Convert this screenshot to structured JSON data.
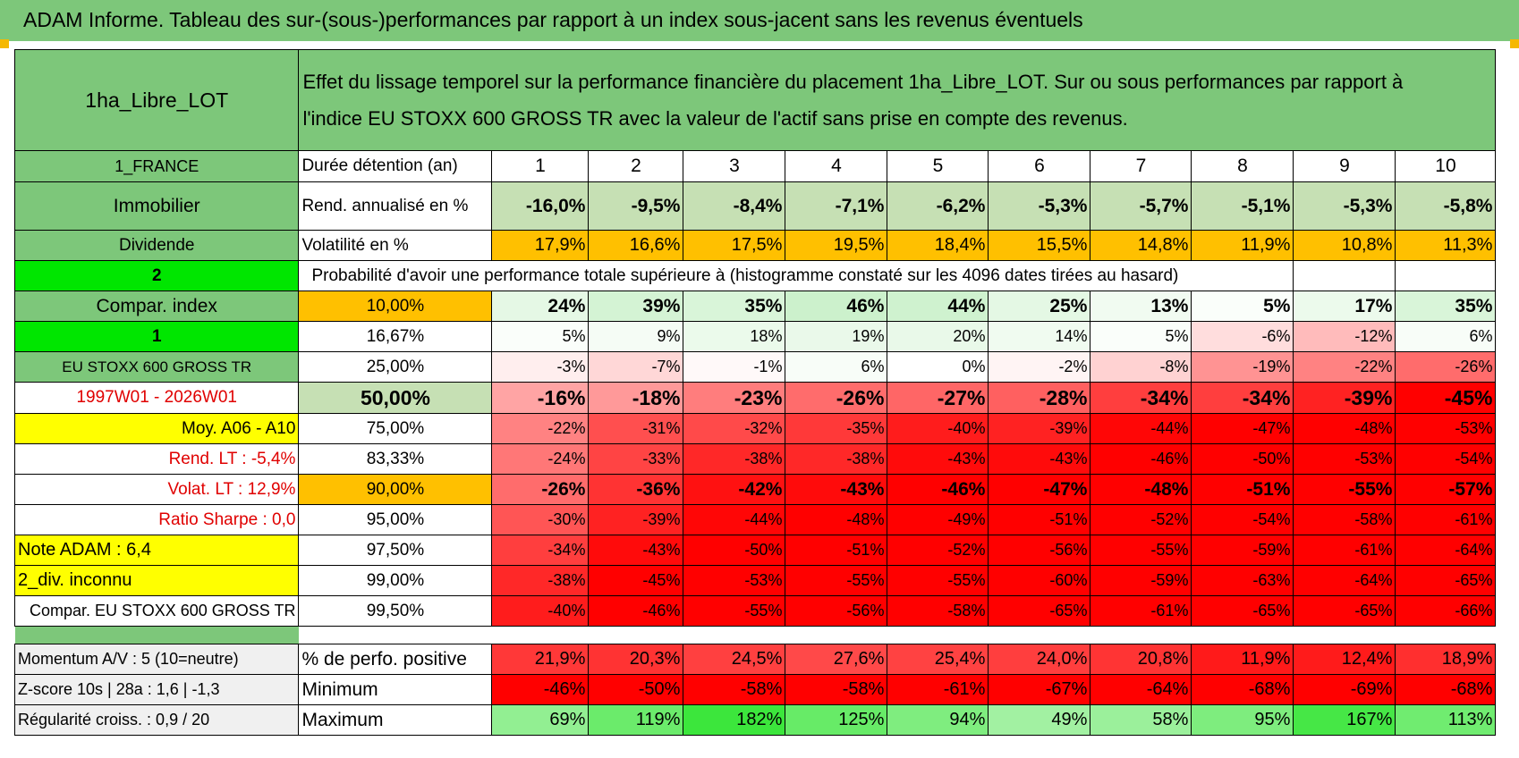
{
  "title": "ADAM Informe. Tableau des sur-(sous-)performances par rapport à un index sous-jacent sans les revenus éventuels",
  "fund_name": "1ha_Libre_LOT",
  "description": "Effet du lissage temporel sur la performance financière du placement 1ha_Libre_LOT. Sur ou sous performances par rapport à l'indice EU STOXX 600 GROSS TR avec la valeur de l'actif sans prise en compte des revenus.",
  "description_line1": "Effet du lissage temporel sur la performance financière du placement 1ha_Libre_LOT. Sur ou sous performances par rapport à",
  "description_line2": "l'indice EU STOXX 600 GROSS TR avec la valeur de l'actif sans prise en compte des revenus.",
  "left_labels": {
    "country": "1_FRANCE",
    "category": "Immobilier",
    "distribution": "Dividende",
    "value_2": "2",
    "compar_index": "Compar. index",
    "value_1": "1",
    "index_name": "EU STOXX 600 GROSS TR",
    "period": "1997W01 - 2026W01",
    "moy": "Moy. A06 - A10",
    "rend_lt": "Rend. LT :    -5,4%",
    "volat_lt": "Volat. LT :    12,9%",
    "sharpe": "Ratio Sharpe :     0,0",
    "note_adam": "Note ADAM : 6,4",
    "div_inconnu": "2_div. inconnu",
    "compar_full": "Compar. EU STOXX 600 GROSS TR"
  },
  "header": {
    "duree_label": "Durée détention (an)",
    "years": [
      "1",
      "2",
      "3",
      "4",
      "5",
      "6",
      "7",
      "8",
      "9",
      "10"
    ]
  },
  "rend": {
    "label": "Rend. annualisé en %",
    "values": [
      "-16,0%",
      "-9,5%",
      "-8,4%",
      "-7,1%",
      "-6,2%",
      "-5,3%",
      "-5,7%",
      "-5,1%",
      "-5,3%",
      "-5,8%"
    ]
  },
  "volat": {
    "label": "Volatilité en %",
    "values": [
      "17,9%",
      "16,6%",
      "17,5%",
      "19,5%",
      "18,4%",
      "15,5%",
      "14,8%",
      "11,9%",
      "10,8%",
      "11,3%"
    ]
  },
  "prob_title": "Probabilité d'avoir une performance totale supérieure à (histogramme constaté sur les 4096 dates tirées au hasard)",
  "quantiles": [
    {
      "pct": "10,00%",
      "values": [
        "24%",
        "39%",
        "35%",
        "46%",
        "44%",
        "25%",
        "13%",
        "5%",
        "17%",
        "35%"
      ]
    },
    {
      "pct": "16,67%",
      "values": [
        "5%",
        "9%",
        "18%",
        "19%",
        "20%",
        "14%",
        "5%",
        "-6%",
        "-12%",
        "6%"
      ]
    },
    {
      "pct": "25,00%",
      "values": [
        "-3%",
        "-7%",
        "-1%",
        "6%",
        "0%",
        "-2%",
        "-8%",
        "-19%",
        "-22%",
        "-26%"
      ]
    },
    {
      "pct": "50,00%",
      "values": [
        "-16%",
        "-18%",
        "-23%",
        "-26%",
        "-27%",
        "-28%",
        "-34%",
        "-34%",
        "-39%",
        "-45%"
      ]
    },
    {
      "pct": "75,00%",
      "values": [
        "-22%",
        "-31%",
        "-32%",
        "-35%",
        "-40%",
        "-39%",
        "-44%",
        "-47%",
        "-48%",
        "-53%"
      ]
    },
    {
      "pct": "83,33%",
      "values": [
        "-24%",
        "-33%",
        "-38%",
        "-38%",
        "-43%",
        "-43%",
        "-46%",
        "-50%",
        "-53%",
        "-54%"
      ]
    },
    {
      "pct": "90,00%",
      "values": [
        "-26%",
        "-36%",
        "-42%",
        "-43%",
        "-46%",
        "-47%",
        "-48%",
        "-51%",
        "-55%",
        "-57%"
      ]
    },
    {
      "pct": "95,00%",
      "values": [
        "-30%",
        "-39%",
        "-44%",
        "-48%",
        "-49%",
        "-51%",
        "-52%",
        "-54%",
        "-58%",
        "-61%"
      ]
    },
    {
      "pct": "97,50%",
      "values": [
        "-34%",
        "-43%",
        "-50%",
        "-51%",
        "-52%",
        "-56%",
        "-55%",
        "-59%",
        "-61%",
        "-64%"
      ]
    },
    {
      "pct": "99,00%",
      "values": [
        "-38%",
        "-45%",
        "-53%",
        "-55%",
        "-55%",
        "-60%",
        "-59%",
        "-63%",
        "-64%",
        "-65%"
      ]
    },
    {
      "pct": "99,50%",
      "values": [
        "-40%",
        "-46%",
        "-55%",
        "-56%",
        "-58%",
        "-65%",
        "-61%",
        "-65%",
        "-65%",
        "-66%"
      ]
    }
  ],
  "bottom": [
    {
      "left": "Momentum A/V : 5 (10=neutre)",
      "label": "% de perfo. positive",
      "values": [
        "21,9%",
        "20,3%",
        "24,5%",
        "27,6%",
        "25,4%",
        "24,0%",
        "20,8%",
        "11,9%",
        "12,4%",
        "18,9%"
      ]
    },
    {
      "left": "Z-score 10s | 28a : 1,6 | -1,3",
      "label": "Minimum",
      "values": [
        "-46%",
        "-50%",
        "-58%",
        "-58%",
        "-61%",
        "-67%",
        "-64%",
        "-68%",
        "-69%",
        "-68%"
      ]
    },
    {
      "left": "Régularité croiss. : 0,9 / 20",
      "label": "Maximum",
      "values": [
        "69%",
        "119%",
        "182%",
        "125%",
        "94%",
        "49%",
        "58%",
        "95%",
        "167%",
        "113%"
      ]
    }
  ]
}
